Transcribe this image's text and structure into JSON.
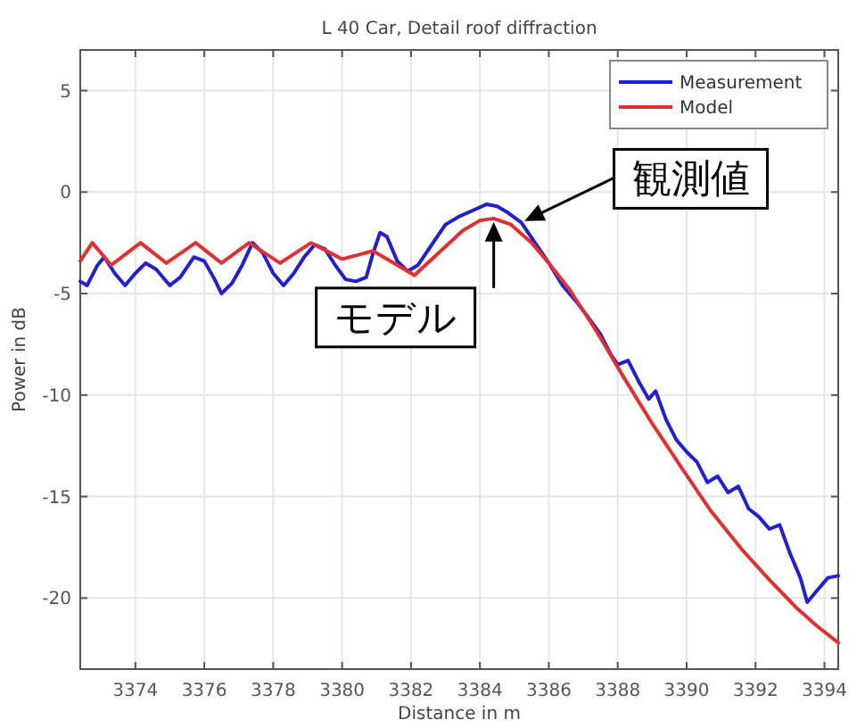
{
  "chart_data": {
    "type": "line",
    "title": "L 40 Car, Detail roof diffraction",
    "xlabel": "Distance in m",
    "ylabel": "Power in dB",
    "xlim": [
      3372.4,
      3394.4
    ],
    "ylim": [
      -23.5,
      7
    ],
    "xticks": [
      3374,
      3376,
      3378,
      3380,
      3382,
      3384,
      3386,
      3388,
      3390,
      3392,
      3394
    ],
    "yticks": [
      -20,
      -15,
      -10,
      -5,
      0,
      5
    ],
    "grid": true,
    "legend": "top right",
    "series": [
      {
        "name": "Measurement",
        "color": "#2020d0",
        "x": [
          3372.4,
          3372.6,
          3372.9,
          3373.1,
          3373.4,
          3373.7,
          3374.0,
          3374.3,
          3374.6,
          3375.0,
          3375.3,
          3375.7,
          3376.0,
          3376.3,
          3376.5,
          3376.8,
          3377.1,
          3377.4,
          3377.7,
          3378.0,
          3378.3,
          3378.6,
          3378.9,
          3379.2,
          3379.5,
          3379.8,
          3380.1,
          3380.4,
          3380.7,
          3380.9,
          3381.1,
          3381.3,
          3381.6,
          3381.9,
          3382.2,
          3382.6,
          3383.0,
          3383.4,
          3383.8,
          3384.2,
          3384.5,
          3384.8,
          3385.2,
          3385.6,
          3386.0,
          3386.4,
          3386.8,
          3387.2,
          3387.5,
          3387.8,
          3388.0,
          3388.3,
          3388.6,
          3388.9,
          3389.1,
          3389.4,
          3389.7,
          3390.0,
          3390.3,
          3390.6,
          3390.9,
          3391.2,
          3391.5,
          3391.8,
          3392.1,
          3392.4,
          3392.7,
          3393.0,
          3393.3,
          3393.5,
          3393.8,
          3394.1,
          3394.4
        ],
        "values": [
          -4.4,
          -4.6,
          -3.6,
          -3.2,
          -4.0,
          -4.6,
          -4.0,
          -3.5,
          -3.8,
          -4.6,
          -4.2,
          -3.2,
          -3.4,
          -4.3,
          -5.0,
          -4.5,
          -3.6,
          -2.5,
          -3.0,
          -4.0,
          -4.6,
          -4.0,
          -3.2,
          -2.6,
          -2.8,
          -3.6,
          -4.3,
          -4.4,
          -4.2,
          -3.0,
          -2.0,
          -2.2,
          -3.4,
          -3.9,
          -3.6,
          -2.6,
          -1.6,
          -1.2,
          -0.9,
          -0.6,
          -0.7,
          -1.0,
          -1.5,
          -2.5,
          -3.5,
          -4.6,
          -5.4,
          -6.3,
          -7.0,
          -8.0,
          -8.5,
          -8.3,
          -9.3,
          -10.2,
          -9.8,
          -11.2,
          -12.2,
          -12.8,
          -13.3,
          -14.3,
          -14.0,
          -14.8,
          -14.5,
          -15.6,
          -16.0,
          -16.6,
          -16.4,
          -17.8,
          -19.0,
          -20.2,
          -19.6,
          -19.0,
          -18.9
        ]
      },
      {
        "name": "Model",
        "color": "#e03030",
        "x": [
          3372.4,
          3372.75,
          3373.3,
          3374.15,
          3374.9,
          3375.75,
          3376.5,
          3377.3,
          3378.2,
          3379.1,
          3380.0,
          3380.9,
          3382.1,
          3382.8,
          3383.5,
          3384.0,
          3384.4,
          3384.9,
          3385.5,
          3386.0,
          3386.6,
          3387.4,
          3388.2,
          3389.0,
          3389.9,
          3390.7,
          3391.6,
          3392.4,
          3393.2,
          3393.8,
          3394.4
        ],
        "values": [
          -3.4,
          -2.5,
          -3.6,
          -2.5,
          -3.5,
          -2.5,
          -3.5,
          -2.5,
          -3.5,
          -2.5,
          -3.3,
          -2.9,
          -4.1,
          -3.0,
          -1.9,
          -1.4,
          -1.3,
          -1.6,
          -2.5,
          -3.5,
          -4.8,
          -6.9,
          -9.2,
          -11.4,
          -13.7,
          -15.7,
          -17.6,
          -19.1,
          -20.5,
          -21.4,
          -22.2
        ]
      }
    ],
    "annotations": [
      {
        "text": "観測値",
        "x": 3385.2,
        "y": -1.5
      },
      {
        "text": "モデル",
        "x": 3384.4,
        "y": -1.3
      }
    ]
  }
}
